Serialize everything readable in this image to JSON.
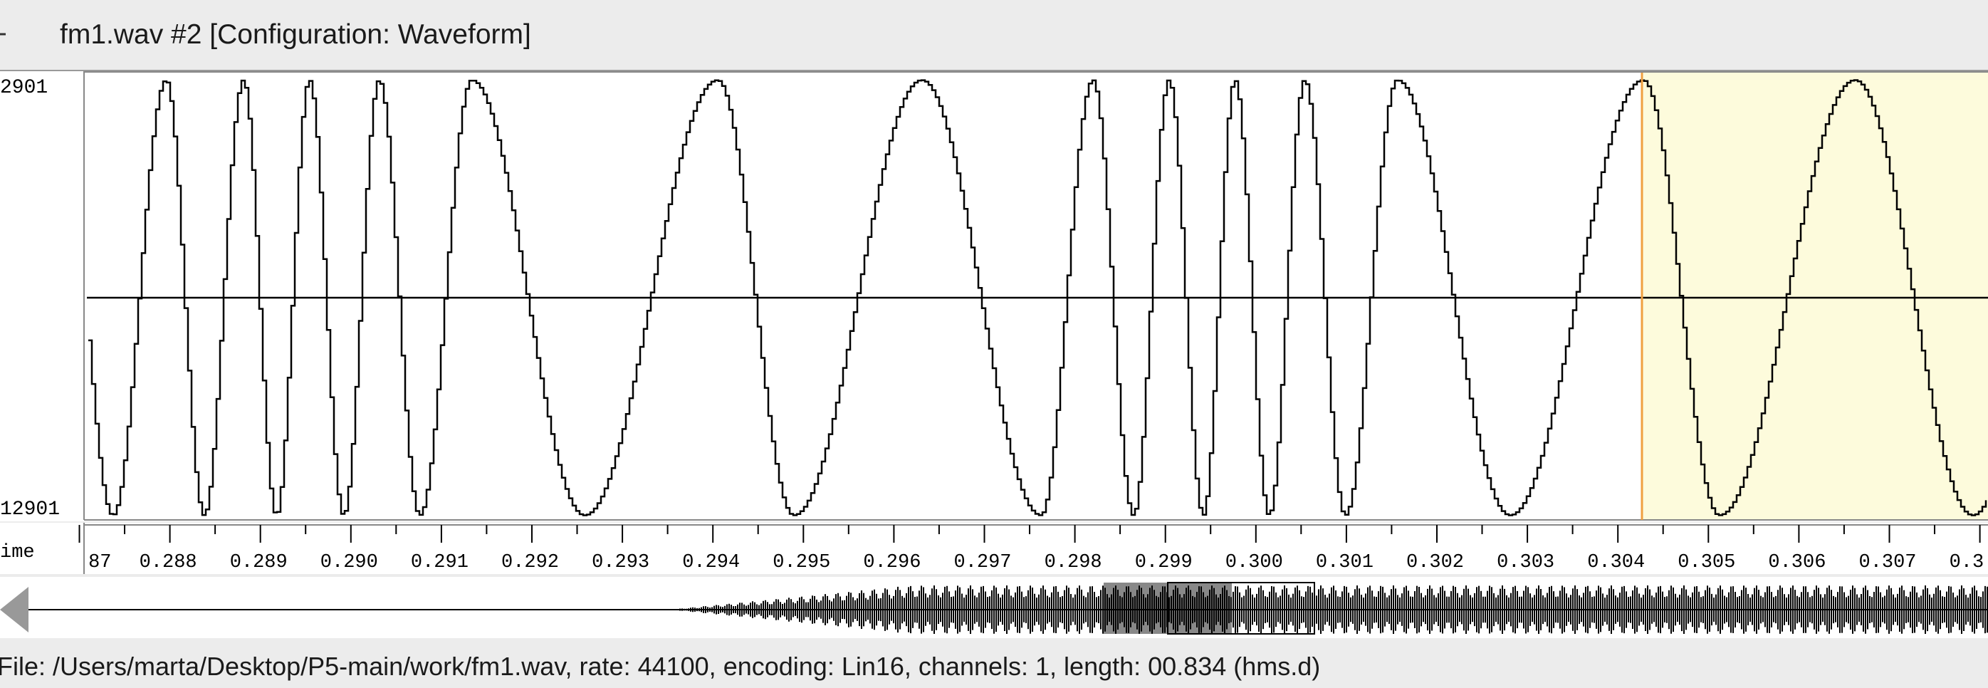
{
  "window": {
    "title": "fm1.wav #2 [Configuration: Waveform]",
    "amplitude_labels": {
      "top": "2901",
      "bottom": "12901"
    },
    "ruler": {
      "label": "ime",
      "ticks": [
        "87",
        "0.288",
        "0.289",
        "0.290",
        "0.291",
        "0.292",
        "0.293",
        "0.294",
        "0.295",
        "0.296",
        "0.297",
        "0.298",
        "0.299",
        "0.300",
        "0.301",
        "0.302",
        "0.303",
        "0.304",
        "0.305",
        "0.306",
        "0.307",
        "0.3"
      ]
    },
    "status": "File: /Users/marta/Desktop/P5-main/work/fm1.wav, rate: 44100, encoding: Lin16, channels: 1, length: 00.834 (hms.d)"
  }
}
